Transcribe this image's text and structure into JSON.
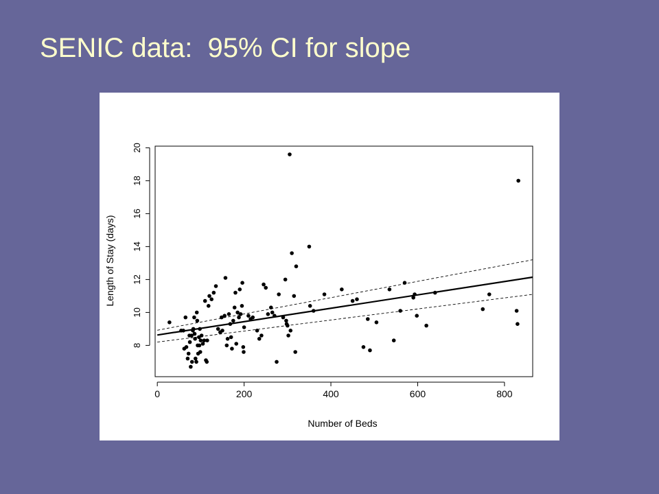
{
  "slide": {
    "title": "SENIC data:  95% CI for slope",
    "background_color": "#666699",
    "title_color": "#ffffcc"
  },
  "chart_data": {
    "type": "scatter",
    "title": "",
    "xlabel": "Number of Beds",
    "ylabel": "Length of Stay (days)",
    "xlim": [
      -5,
      865
    ],
    "ylim": [
      6.1,
      20.1
    ],
    "xticks": [
      0,
      200,
      400,
      600,
      800
    ],
    "yticks": [
      8,
      10,
      12,
      14,
      16,
      18,
      20
    ],
    "grid": false,
    "legend": "none",
    "points": [
      [
        28,
        9.4
      ],
      [
        55,
        8.9
      ],
      [
        60,
        8.9
      ],
      [
        62,
        7.8
      ],
      [
        65,
        9.7
      ],
      [
        67,
        7.9
      ],
      [
        70,
        7.2
      ],
      [
        72,
        7.5
      ],
      [
        74,
        8.6
      ],
      [
        75,
        8.2
      ],
      [
        77,
        6.7
      ],
      [
        79,
        8.6
      ],
      [
        80,
        7.0
      ],
      [
        82,
        8.9
      ],
      [
        83,
        9.0
      ],
      [
        85,
        9.7
      ],
      [
        86,
        8.7
      ],
      [
        87,
        8.4
      ],
      [
        88,
        7.2
      ],
      [
        90,
        7.0
      ],
      [
        91,
        10.0
      ],
      [
        92,
        9.5
      ],
      [
        93,
        8.0
      ],
      [
        94,
        7.5
      ],
      [
        96,
        8.5
      ],
      [
        97,
        8.0
      ],
      [
        98,
        9.0
      ],
      [
        99,
        7.6
      ],
      [
        100,
        8.3
      ],
      [
        102,
        8.6
      ],
      [
        105,
        8.1
      ],
      [
        108,
        8.3
      ],
      [
        110,
        10.7
      ],
      [
        112,
        7.1
      ],
      [
        114,
        7.0
      ],
      [
        115,
        8.3
      ],
      [
        118,
        10.4
      ],
      [
        120,
        11.0
      ],
      [
        125,
        10.8
      ],
      [
        130,
        11.2
      ],
      [
        135,
        11.6
      ],
      [
        140,
        9.0
      ],
      [
        145,
        8.8
      ],
      [
        148,
        9.7
      ],
      [
        150,
        8.9
      ],
      [
        155,
        9.8
      ],
      [
        157,
        12.1
      ],
      [
        160,
        8.0
      ],
      [
        162,
        8.4
      ],
      [
        165,
        9.9
      ],
      [
        168,
        9.3
      ],
      [
        170,
        8.5
      ],
      [
        172,
        7.8
      ],
      [
        175,
        9.5
      ],
      [
        178,
        10.3
      ],
      [
        180,
        11.2
      ],
      [
        182,
        8.1
      ],
      [
        185,
        10.0
      ],
      [
        188,
        9.7
      ],
      [
        190,
        11.4
      ],
      [
        192,
        9.9
      ],
      [
        195,
        10.4
      ],
      [
        196,
        11.8
      ],
      [
        198,
        7.9
      ],
      [
        199,
        7.6
      ],
      [
        200,
        9.1
      ],
      [
        210,
        9.8
      ],
      [
        215,
        9.6
      ],
      [
        220,
        9.7
      ],
      [
        230,
        8.9
      ],
      [
        235,
        8.4
      ],
      [
        240,
        8.6
      ],
      [
        245,
        11.7
      ],
      [
        250,
        11.5
      ],
      [
        255,
        9.9
      ],
      [
        262,
        10.3
      ],
      [
        265,
        10.0
      ],
      [
        270,
        9.8
      ],
      [
        275,
        7.0
      ],
      [
        280,
        11.1
      ],
      [
        290,
        9.7
      ],
      [
        295,
        12.0
      ],
      [
        297,
        9.5
      ],
      [
        298,
        9.3
      ],
      [
        300,
        9.2
      ],
      [
        302,
        8.6
      ],
      [
        305,
        19.6
      ],
      [
        307,
        8.9
      ],
      [
        310,
        13.6
      ],
      [
        315,
        11.0
      ],
      [
        318,
        7.6
      ],
      [
        320,
        12.8
      ],
      [
        350,
        14.0
      ],
      [
        352,
        10.4
      ],
      [
        360,
        10.1
      ],
      [
        385,
        11.1
      ],
      [
        425,
        11.4
      ],
      [
        450,
        10.7
      ],
      [
        460,
        10.8
      ],
      [
        475,
        7.9
      ],
      [
        485,
        9.6
      ],
      [
        490,
        7.7
      ],
      [
        505,
        9.4
      ],
      [
        535,
        11.4
      ],
      [
        545,
        8.3
      ],
      [
        560,
        10.1
      ],
      [
        570,
        11.8
      ],
      [
        590,
        10.9
      ],
      [
        593,
        11.1
      ],
      [
        598,
        9.8
      ],
      [
        620,
        9.2
      ],
      [
        640,
        11.2
      ],
      [
        750,
        10.2
      ],
      [
        765,
        11.1
      ],
      [
        828,
        10.1
      ],
      [
        830,
        9.3
      ],
      [
        832,
        18.0
      ]
    ],
    "fit_line": {
      "intercept": 8.63,
      "slope": 0.00406
    },
    "ci_upper": [
      [
        0,
        8.92
      ],
      [
        865,
        13.2
      ]
    ],
    "ci_lower": [
      [
        0,
        8.2
      ],
      [
        865,
        11.1
      ]
    ]
  }
}
